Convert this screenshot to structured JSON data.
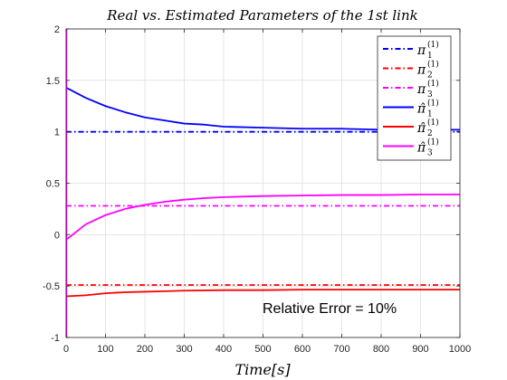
{
  "chart_data": {
    "type": "line",
    "title": "Real vs. Estimated Parameters of the 1st link",
    "xlabel": "Time[s]",
    "ylabel": "",
    "xlim": [
      0,
      1000
    ],
    "ylim": [
      -1,
      2
    ],
    "xticks": [
      "0",
      "100",
      "200",
      "300",
      "400",
      "500",
      "600",
      "700",
      "800",
      "900",
      "1000"
    ],
    "yticks": [
      "2",
      "1.5",
      "1",
      "0.5",
      "0",
      "-0.5",
      "-1"
    ],
    "grid": true,
    "legend_position": "top-right",
    "annotation": "Relative Error  = 10%",
    "series": [
      {
        "name": "π1(1)",
        "symbol": "π",
        "hat": false,
        "sub": "1",
        "sup": "(1)",
        "color": "#0000ff",
        "style": "dashdot",
        "x": [
          0,
          1000
        ],
        "y": [
          1.0,
          1.0
        ]
      },
      {
        "name": "π2(1)",
        "symbol": "π",
        "hat": false,
        "sub": "2",
        "sup": "(1)",
        "color": "#ff0000",
        "style": "dashdot",
        "x": [
          0,
          1000
        ],
        "y": [
          -0.49,
          -0.49
        ]
      },
      {
        "name": "π3(1)",
        "symbol": "π",
        "hat": false,
        "sub": "3",
        "sup": "(1)",
        "color": "#ff00ff",
        "style": "dashdot",
        "x": [
          0,
          1000
        ],
        "y": [
          0.28,
          0.28
        ]
      },
      {
        "name": "π̂1(1)",
        "symbol": "π̂",
        "hat": true,
        "sub": "1",
        "sup": "(1)",
        "color": "#0000ff",
        "style": "solid",
        "x": [
          0,
          50,
          100,
          150,
          200,
          250,
          300,
          350,
          400,
          500,
          600,
          700,
          800,
          900,
          1000
        ],
        "y": [
          1.43,
          1.33,
          1.25,
          1.19,
          1.14,
          1.11,
          1.08,
          1.07,
          1.05,
          1.04,
          1.03,
          1.03,
          1.02,
          1.02,
          1.02
        ]
      },
      {
        "name": "π̂2(1)",
        "symbol": "π̂",
        "hat": true,
        "sub": "2",
        "sup": "(1)",
        "color": "#ff0000",
        "style": "solid",
        "x": [
          0,
          50,
          100,
          150,
          200,
          250,
          300,
          400,
          500,
          600,
          700,
          800,
          900,
          1000
        ],
        "y": [
          -0.6,
          -0.59,
          -0.57,
          -0.56,
          -0.555,
          -0.55,
          -0.545,
          -0.54,
          -0.54,
          -0.535,
          -0.535,
          -0.535,
          -0.535,
          -0.535
        ]
      },
      {
        "name": "π̂3(1)",
        "symbol": "π̂",
        "hat": true,
        "sub": "3",
        "sup": "(1)",
        "color": "#ff00ff",
        "style": "solid",
        "x": [
          0,
          50,
          100,
          150,
          200,
          250,
          300,
          350,
          400,
          500,
          600,
          700,
          800,
          900,
          1000
        ],
        "y": [
          -0.05,
          0.1,
          0.19,
          0.25,
          0.29,
          0.32,
          0.34,
          0.355,
          0.365,
          0.375,
          0.38,
          0.385,
          0.385,
          0.39,
          0.39
        ]
      },
      {
        "name": "initial transient",
        "color": "#ff00ff",
        "style": "solid",
        "legend": false,
        "x": [
          1,
          1
        ],
        "y": [
          -1.0,
          2.0
        ]
      }
    ]
  }
}
